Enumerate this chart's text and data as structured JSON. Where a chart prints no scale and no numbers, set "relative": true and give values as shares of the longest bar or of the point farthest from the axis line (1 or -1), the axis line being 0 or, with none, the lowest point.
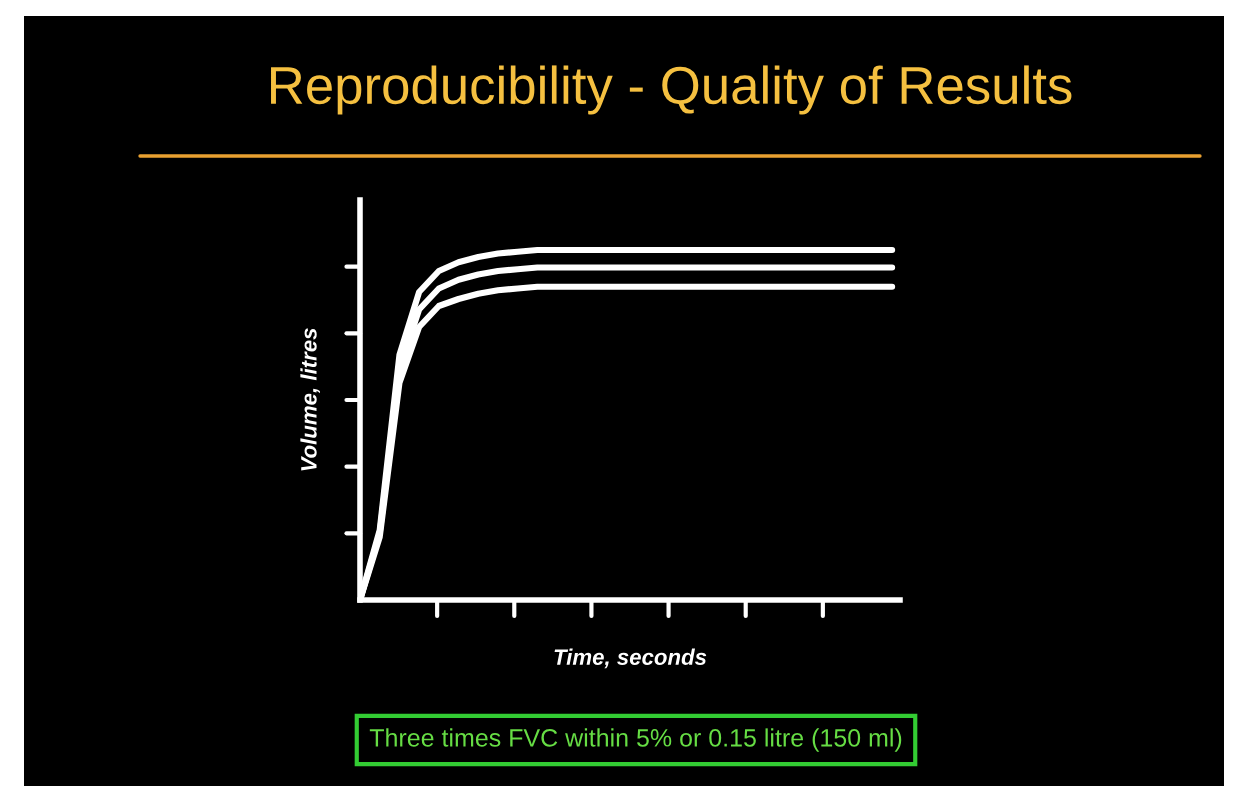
{
  "chart_data": {
    "type": "line",
    "title": "Reproducibility - Quality of Results",
    "xlabel": "Time, seconds",
    "ylabel": "Volume, litres",
    "relative": true,
    "categories": [
      null,
      null,
      null,
      null,
      null,
      null,
      null,
      null,
      null,
      null,
      null,
      null,
      null,
      null,
      null,
      null,
      null,
      null,
      null,
      null,
      null,
      null,
      null,
      null,
      null,
      null,
      null,
      null
    ],
    "series": [
      {
        "color": "#ffffff",
        "values": [
          0,
          0.2,
          0.7,
          0.88,
          0.94,
          0.965,
          0.98,
          0.99,
          0.995,
          1,
          1,
          1,
          1,
          1,
          1,
          1,
          1,
          1,
          1,
          1,
          1,
          1,
          1,
          1,
          1,
          1,
          1,
          1
        ]
      },
      {
        "color": "#ffffff",
        "values": [
          0,
          0.19,
          0.66,
          0.83,
          0.89,
          0.915,
          0.93,
          0.94,
          0.945,
          0.95,
          0.95,
          0.95,
          0.95,
          0.95,
          0.95,
          0.95,
          0.95,
          0.95,
          0.95,
          0.95,
          0.95,
          0.95,
          0.95,
          0.95,
          0.95,
          0.95,
          0.95,
          0.95
        ]
      },
      {
        "color": "#ffffff",
        "values": [
          0,
          0.18,
          0.62,
          0.78,
          0.84,
          0.86,
          0.875,
          0.885,
          0.89,
          0.895,
          0.895,
          0.895,
          0.895,
          0.895,
          0.895,
          0.895,
          0.895,
          0.895,
          0.895,
          0.895,
          0.895,
          0.895,
          0.895,
          0.895,
          0.895,
          0.895,
          0.895,
          0.895
        ]
      }
    ],
    "annotations": [
      "Three times FVC within 5% or 0.15 litre (150 ml)"
    ]
  }
}
